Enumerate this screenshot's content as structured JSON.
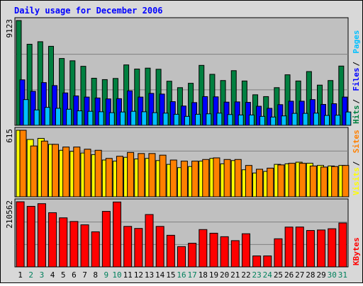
{
  "chart_data": {
    "type": "bar",
    "title": "Daily usage for December 2006",
    "categories": [
      "1",
      "2",
      "3",
      "4",
      "5",
      "6",
      "7",
      "8",
      "9",
      "10",
      "11",
      "12",
      "13",
      "14",
      "15",
      "16",
      "17",
      "18",
      "19",
      "20",
      "21",
      "22",
      "23",
      "24",
      "25",
      "26",
      "27",
      "28",
      "29",
      "30",
      "31"
    ],
    "weekend_days": [
      "2",
      "3",
      "9",
      "10",
      "16",
      "17",
      "23",
      "24",
      "30",
      "31"
    ],
    "colors": {
      "background": "#C0C0C0",
      "frame": "#D8D8D8",
      "title": "#0000FF",
      "hits": "#008040",
      "files": "#0000FF",
      "pages": "#00C0FF",
      "visits": "#FFFF00",
      "sites": "#FF8000",
      "kbytes": "#FF0000",
      "weekday_label": "#000000",
      "weekend_label": "#00805C"
    },
    "panels": [
      {
        "id": "hits-files-pages",
        "max_label": "9123",
        "ymax": 9123,
        "legend": [
          {
            "text": "Hits",
            "color": "#008040"
          },
          {
            "text": "Files",
            "color": "#0000FF"
          },
          {
            "text": "Pages",
            "color": "#00C0FF"
          }
        ],
        "series": [
          {
            "name": "Hits",
            "color": "#008040",
            "values": [
              9123,
              7060,
              7280,
              6880,
              5820,
              5620,
              5140,
              4100,
              3980,
              4080,
              5260,
              4900,
              4980,
              4880,
              3840,
              3280,
              3660,
              5220,
              4440,
              3900,
              4760,
              3860,
              2660,
              2500,
              3280,
              4400,
              3860,
              4680,
              3500,
              3900,
              5160
            ]
          },
          {
            "name": "Files",
            "color": "#0000FF",
            "values": [
              3960,
              2960,
              3720,
              3460,
              2820,
              2560,
              2460,
              2380,
              2300,
              2320,
              3000,
              2460,
              2780,
              2720,
              2060,
              1680,
              1980,
              2500,
              2480,
              2020,
              2040,
              2000,
              1660,
              1480,
              1800,
              2100,
              2100,
              2240,
              1820,
              1880,
              2460
            ]
          },
          {
            "name": "Pages",
            "color": "#00C0FF",
            "values": [
              2240,
              1340,
              1560,
              1480,
              1400,
              1260,
              1220,
              1180,
              1100,
              1160,
              1220,
              1180,
              1100,
              1060,
              960,
              780,
              960,
              1000,
              1060,
              940,
              900,
              900,
              780,
              720,
              820,
              1040,
              1040,
              1060,
              860,
              880,
              1160
            ]
          }
        ]
      },
      {
        "id": "visits-sites",
        "max_label": "615",
        "ymax": 615,
        "legend": [
          {
            "text": "Visits",
            "color": "#FFFF00"
          },
          {
            "text": "Sites",
            "color": "#FF8000"
          }
        ],
        "series": [
          {
            "name": "Visits",
            "color": "#FFFF00",
            "values": [
              615,
              530,
              540,
              485,
              430,
              420,
              405,
              390,
              340,
              330,
              365,
              350,
              355,
              335,
              300,
              270,
              280,
              330,
              355,
              305,
              335,
              250,
              220,
              235,
              300,
              305,
              320,
              310,
              290,
              285,
              290
            ]
          },
          {
            "name": "Sites",
            "color": "#FF8000",
            "values": [
              615,
              470,
              515,
              485,
              460,
              460,
              440,
              430,
              355,
              375,
              410,
              400,
              400,
              385,
              340,
              330,
              330,
              345,
              360,
              345,
              345,
              290,
              255,
              265,
              295,
              310,
              310,
              285,
              275,
              280,
              290
            ]
          }
        ]
      },
      {
        "id": "kbytes",
        "max_label": "210562",
        "ymax": 210562,
        "legend": [
          {
            "text": "KBytes",
            "color": "#FF0000"
          }
        ],
        "series": [
          {
            "name": "KBytes",
            "color": "#FF0000",
            "values": [
              210562,
              195800,
              204400,
              175200,
              158600,
              146800,
              136000,
              113400,
              179500,
              209800,
              130900,
              124300,
              169300,
              130900,
              102200,
              65600,
              76500,
              120700,
              108900,
              97600,
              84900,
              107200,
              35500,
              35500,
              90900,
              128700,
              128900,
              117700,
              119300,
              123400,
              142000
            ]
          }
        ]
      }
    ],
    "grid": true,
    "legend_position": "right, vertical"
  }
}
